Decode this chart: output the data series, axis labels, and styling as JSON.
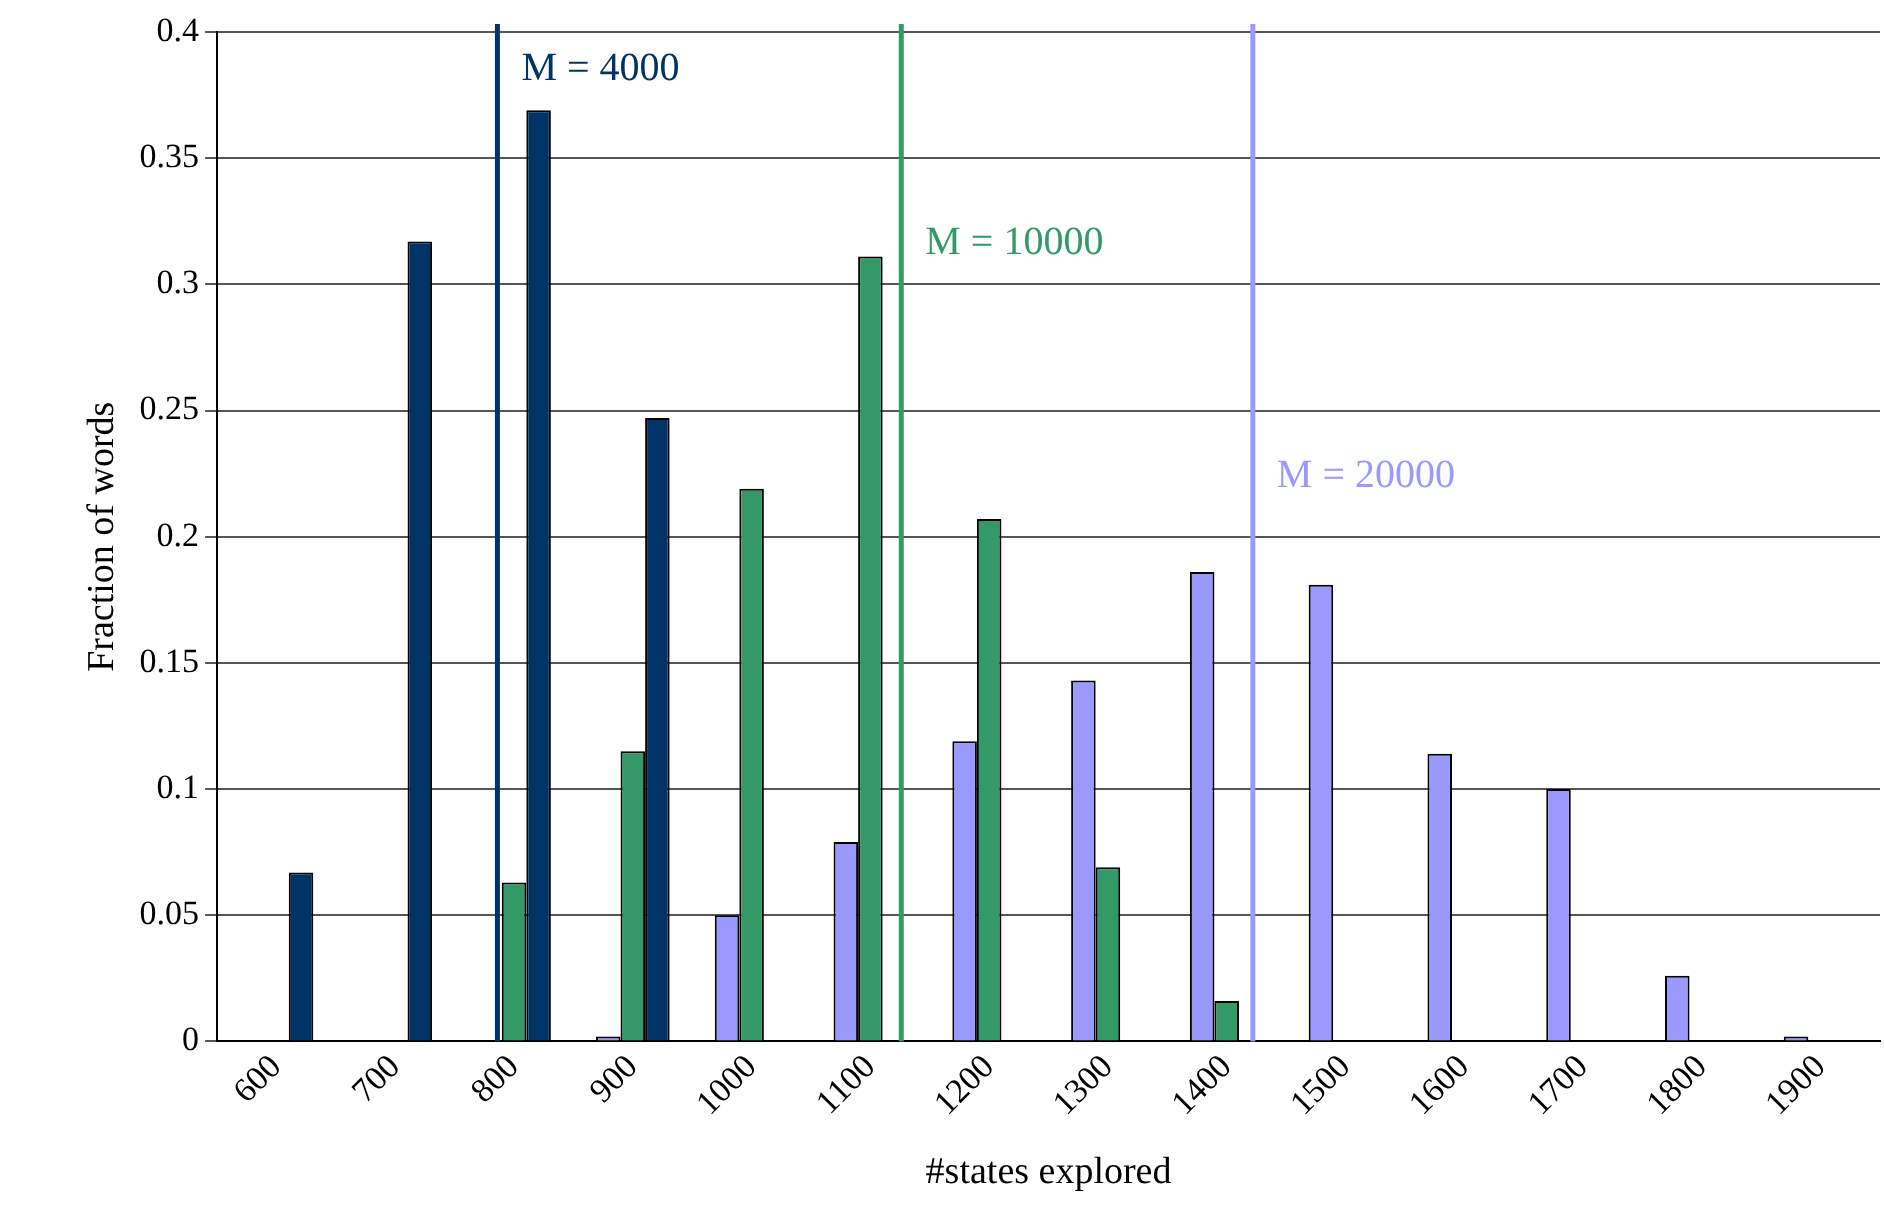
{
  "chart_data": {
    "type": "bar",
    "xlabel": "#states explored",
    "ylabel": "Fraction of words",
    "x": [
      600,
      700,
      800,
      900,
      1000,
      1100,
      1200,
      1300,
      1400,
      1500,
      1600,
      1700,
      1800,
      1900
    ],
    "series": [
      {
        "color": "#9999ff",
        "values": [
          null,
          null,
          null,
          0.002,
          0.05,
          0.079,
          0.119,
          0.143,
          0.186,
          0.181,
          0.114,
          0.1,
          0.026,
          0.002
        ]
      },
      {
        "color": "#339966",
        "values": [
          null,
          null,
          0.063,
          0.115,
          0.219,
          0.311,
          0.207,
          0.069,
          0.016,
          null,
          null,
          null,
          null,
          null
        ]
      },
      {
        "color": "#003366",
        "values": [
          0.067,
          0.317,
          0.369,
          0.247,
          null,
          null,
          null,
          null,
          null,
          null,
          null,
          null,
          null,
          null
        ]
      }
    ],
    "xlim": [
      550,
      1950
    ],
    "xticks": [
      600,
      700,
      800,
      900,
      1000,
      1100,
      1200,
      1300,
      1400,
      1500,
      1600,
      1700,
      1800,
      1900
    ],
    "ylim": [
      0,
      0.4
    ],
    "yticks": [
      0,
      0.05,
      0.1,
      0.15,
      0.2,
      0.25,
      0.3,
      0.35,
      0.4
    ],
    "grid": "y",
    "ref_lines": [
      {
        "axis": "x",
        "value": 786,
        "color": "#003366"
      },
      {
        "axis": "x",
        "value": 1126,
        "color": "#339966"
      },
      {
        "axis": "x",
        "value": 1422,
        "color": "#9999ff"
      }
    ],
    "annotations": [
      {
        "text": "M = 4000",
        "x": 786,
        "y": 0.385
      },
      {
        "text": "M = 10000",
        "x": 1126,
        "y": 0.316
      },
      {
        "text": "M = 20000",
        "x": 1422,
        "y": 0.224
      }
    ]
  }
}
